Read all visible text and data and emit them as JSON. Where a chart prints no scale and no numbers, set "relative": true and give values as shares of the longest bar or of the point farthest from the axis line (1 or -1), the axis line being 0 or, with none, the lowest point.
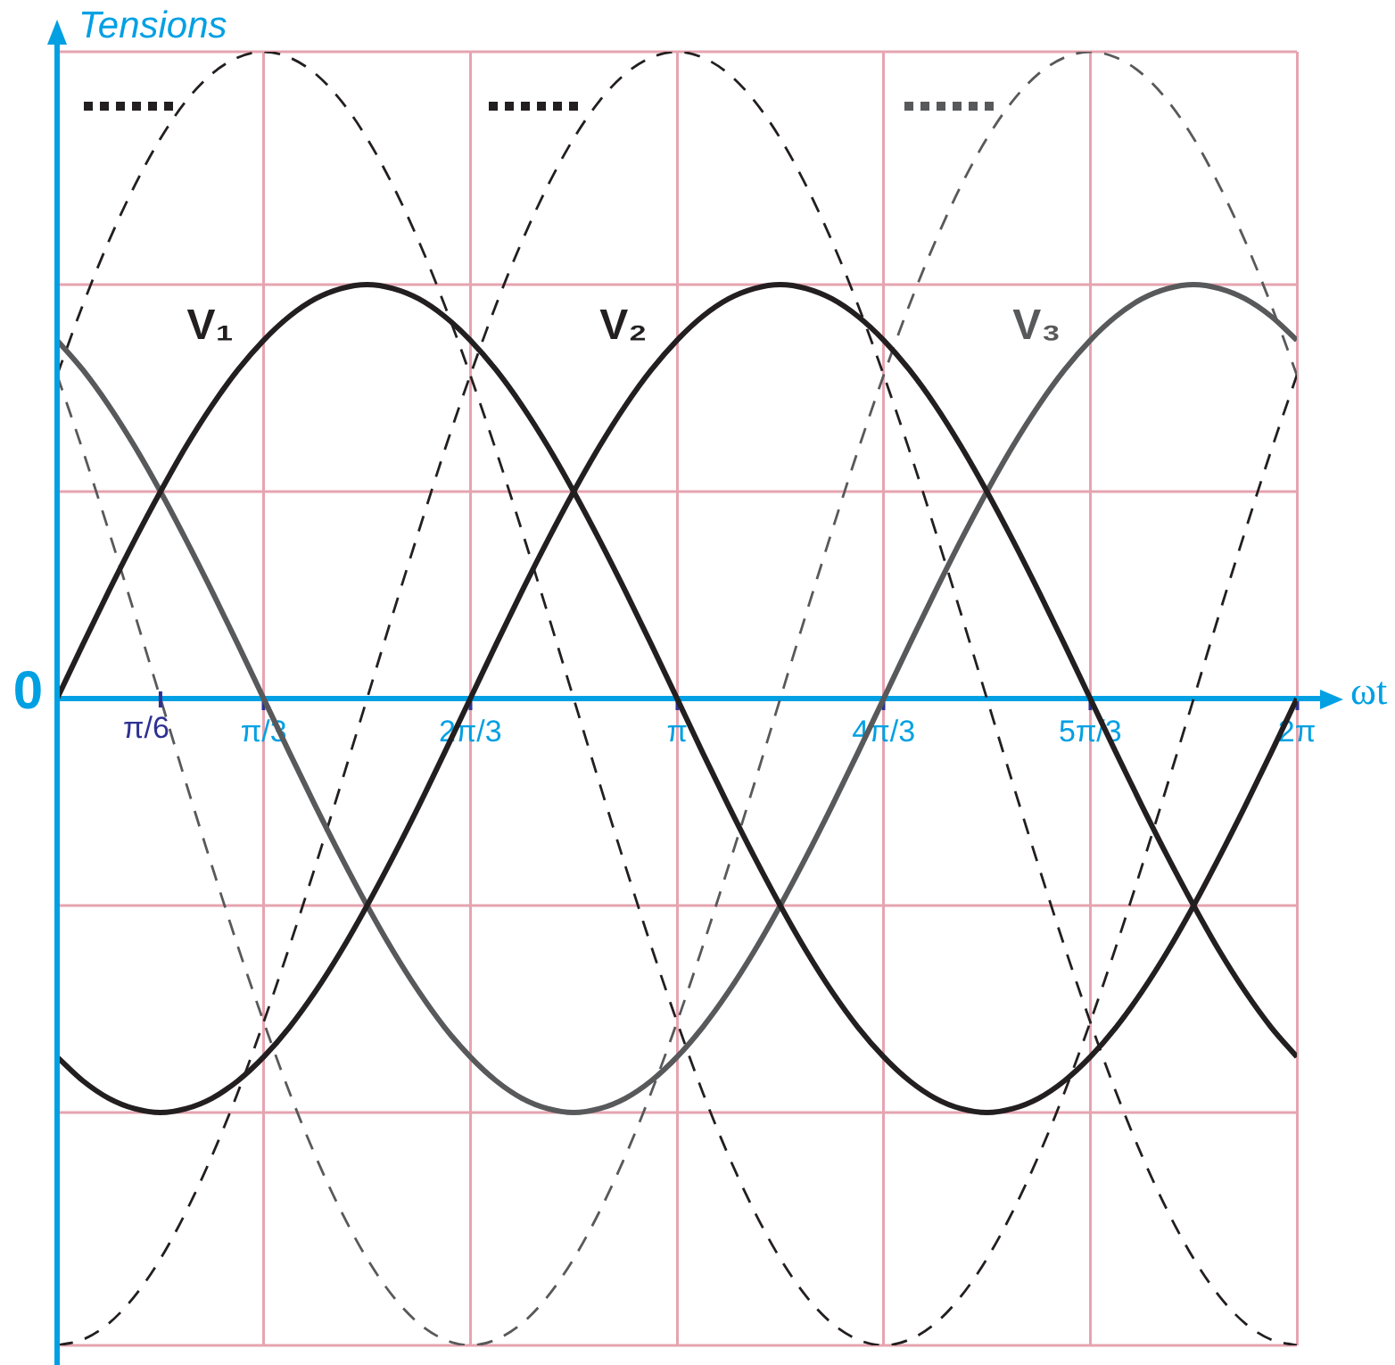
{
  "chart_data": {
    "type": "line",
    "xlabel": "ωt",
    "ylabel": "Tensions",
    "relative": true,
    "grid": "x",
    "legend": false,
    "marker": "none",
    "line_style": "solid",
    "xlim": [
      0,
      6.283
    ],
    "xticks": [
      {
        "value": 1.047,
        "label": "π/3"
      },
      {
        "value": 2.094,
        "label": "2π/3"
      },
      {
        "value": 3.142,
        "label": "π"
      },
      {
        "value": 4.189,
        "label": "4π/3"
      },
      {
        "value": 5.236,
        "label": "5π/3"
      },
      {
        "value": 6.283,
        "label": "2π"
      }
    ],
    "ref_lines": [
      {
        "axis": "y",
        "value": 0.64,
        "color": "#e6a4b0"
      },
      {
        "axis": "y",
        "value": 0.32,
        "color": "#e6a4b0"
      },
      {
        "axis": "y",
        "value": -0.32,
        "color": "#e6a4b0"
      },
      {
        "axis": "y",
        "value": -0.64,
        "color": "#e6a4b0"
      }
    ],
    "annotations": [
      {
        "text": "0",
        "x": 0,
        "y": 0
      },
      {
        "text": "π/6",
        "x": 0.524,
        "y": 0
      }
    ],
    "x": [
      0,
      0.131,
      0.262,
      0.393,
      0.524,
      0.654,
      0.785,
      0.916,
      1.047,
      1.178,
      1.309,
      1.44,
      1.571,
      1.702,
      1.833,
      1.963,
      2.094,
      2.225,
      2.356,
      2.487,
      2.618,
      2.749,
      2.88,
      3.011,
      3.142,
      3.272,
      3.403,
      3.534,
      3.665,
      3.796,
      3.927,
      4.058,
      4.189,
      4.32,
      4.451,
      4.581,
      4.712,
      4.843,
      4.974,
      5.105,
      5.236,
      5.367,
      5.498,
      5.629,
      5.76,
      5.89,
      6.021,
      6.152,
      6.283
    ],
    "series": [
      {
        "name": "V₁",
        "color": "#231f20",
        "values": [
          0,
          0.084,
          0.166,
          0.245,
          0.32,
          0.39,
          0.453,
          0.508,
          0.554,
          0.591,
          0.618,
          0.634,
          0.64,
          0.634,
          0.618,
          0.591,
          0.554,
          0.508,
          0.453,
          0.39,
          0.32,
          0.245,
          0.166,
          0.084,
          0,
          -0.084,
          -0.166,
          -0.245,
          -0.32,
          -0.39,
          -0.453,
          -0.508,
          -0.554,
          -0.591,
          -0.618,
          -0.634,
          -0.64,
          -0.634,
          -0.618,
          -0.591,
          -0.554,
          -0.508,
          -0.453,
          -0.39,
          -0.32,
          -0.245,
          -0.166,
          -0.084,
          0
        ]
      },
      {
        "name": "V₂",
        "color": "#231f20",
        "values": [
          -0.554,
          -0.591,
          -0.618,
          -0.634,
          -0.64,
          -0.634,
          -0.618,
          -0.591,
          -0.554,
          -0.508,
          -0.453,
          -0.39,
          -0.32,
          -0.245,
          -0.166,
          -0.084,
          0,
          0.084,
          0.166,
          0.245,
          0.32,
          0.39,
          0.453,
          0.508,
          0.554,
          0.591,
          0.618,
          0.634,
          0.64,
          0.634,
          0.618,
          0.591,
          0.554,
          0.508,
          0.453,
          0.39,
          0.32,
          0.245,
          0.166,
          0.084,
          0,
          -0.084,
          -0.166,
          -0.245,
          -0.32,
          -0.39,
          -0.453,
          -0.508,
          -0.554
        ]
      },
      {
        "name": "V₃",
        "color": "#58595b",
        "values": [
          0.554,
          0.508,
          0.453,
          0.39,
          0.32,
          0.245,
          0.166,
          0.084,
          0,
          -0.084,
          -0.166,
          -0.245,
          -0.32,
          -0.39,
          -0.453,
          -0.508,
          -0.554,
          -0.591,
          -0.618,
          -0.634,
          -0.64,
          -0.634,
          -0.618,
          -0.591,
          -0.554,
          -0.508,
          -0.453,
          -0.39,
          -0.32,
          -0.245,
          -0.166,
          -0.084,
          0,
          0.084,
          0.166,
          0.245,
          0.32,
          0.39,
          0.453,
          0.508,
          0.554,
          0.591,
          0.618,
          0.634,
          0.64,
          0.634,
          0.618,
          0.591,
          0.554
        ]
      },
      {
        "color": "#231f20",
        "line_style": "dashed",
        "values": [
          0.5,
          0.609,
          0.707,
          0.793,
          0.866,
          0.924,
          0.966,
          0.991,
          1,
          0.991,
          0.966,
          0.924,
          0.866,
          0.793,
          0.707,
          0.609,
          0.5,
          0.383,
          0.259,
          0.131,
          0,
          -0.131,
          -0.259,
          -0.383,
          -0.5,
          -0.609,
          -0.707,
          -0.793,
          -0.866,
          -0.924,
          -0.966,
          -0.991,
          -1,
          -0.991,
          -0.966,
          -0.924,
          -0.866,
          -0.793,
          -0.707,
          -0.609,
          -0.5,
          -0.383,
          -0.259,
          -0.131,
          0,
          0.131,
          0.259,
          0.383,
          0.5
        ]
      },
      {
        "color": "#231f20",
        "line_style": "dashed",
        "values": [
          -1,
          -0.991,
          -0.966,
          -0.924,
          -0.866,
          -0.793,
          -0.707,
          -0.609,
          -0.5,
          -0.383,
          -0.259,
          -0.131,
          0,
          0.131,
          0.259,
          0.383,
          0.5,
          0.609,
          0.707,
          0.793,
          0.866,
          0.924,
          0.966,
          0.991,
          1,
          0.991,
          0.966,
          0.924,
          0.866,
          0.793,
          0.707,
          0.609,
          0.5,
          0.383,
          0.259,
          0.131,
          0,
          -0.131,
          -0.259,
          -0.383,
          -0.5,
          -0.609,
          -0.707,
          -0.793,
          -0.866,
          -0.924,
          -0.966,
          -0.991,
          -1
        ]
      },
      {
        "color": "#58595b",
        "line_style": "dashed",
        "values": [
          0.5,
          0.383,
          0.259,
          0.131,
          0,
          -0.131,
          -0.259,
          -0.383,
          -0.5,
          -0.609,
          -0.707,
          -0.793,
          -0.866,
          -0.924,
          -0.966,
          -0.991,
          -1,
          -0.991,
          -0.966,
          -0.924,
          -0.866,
          -0.793,
          -0.707,
          -0.609,
          -0.5,
          -0.383,
          -0.259,
          -0.131,
          0,
          0.131,
          0.259,
          0.383,
          0.5,
          0.609,
          0.707,
          0.793,
          0.866,
          0.924,
          0.966,
          0.991,
          1,
          0.991,
          0.966,
          0.924,
          0.866,
          0.793,
          0.707,
          0.609,
          0.5
        ]
      }
    ]
  }
}
